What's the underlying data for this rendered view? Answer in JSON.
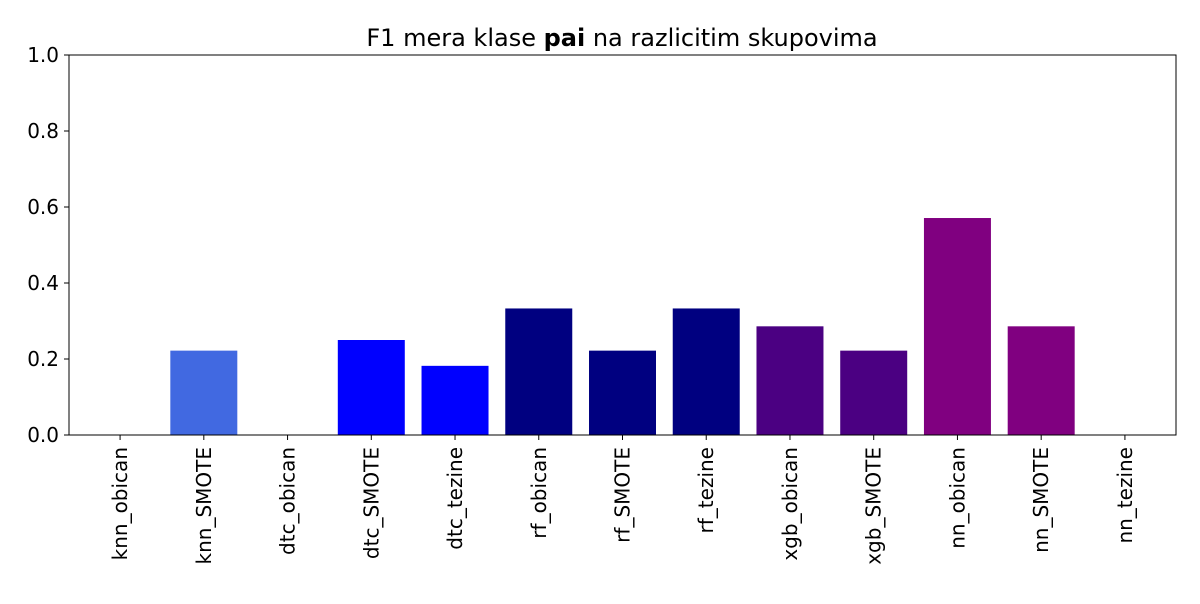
{
  "chart_data": {
    "type": "bar",
    "title": {
      "prefix": "F1 mera klase ",
      "bold": "pai",
      "suffix": " na razlicitim skupovima"
    },
    "xlabel": "",
    "ylabel": "",
    "ylim": [
      0,
      1.0
    ],
    "yticks": [
      "0.0",
      "0.2",
      "0.4",
      "0.6",
      "0.8",
      "1.0"
    ],
    "grid": false,
    "categories": [
      "knn_obican",
      "knn_SMOTE",
      "dtc_obican",
      "dtc_SMOTE",
      "dtc_tezine",
      "rf_obican",
      "rf_SMOTE",
      "rf_tezine",
      "xgb_obican",
      "xgb_SMOTE",
      "nn_obican",
      "nn_SMOTE",
      "nn_tezine"
    ],
    "values": [
      0.0,
      0.222,
      0.0,
      0.25,
      0.182,
      0.333,
      0.222,
      0.333,
      0.286,
      0.222,
      0.571,
      0.286,
      0.0
    ],
    "colors": [
      "#4169e1",
      "#4169e1",
      "#0000ff",
      "#0000ff",
      "#0000ff",
      "#000080",
      "#000080",
      "#000080",
      "#4b0082",
      "#4b0082",
      "#800080",
      "#800080",
      "#800080"
    ]
  }
}
